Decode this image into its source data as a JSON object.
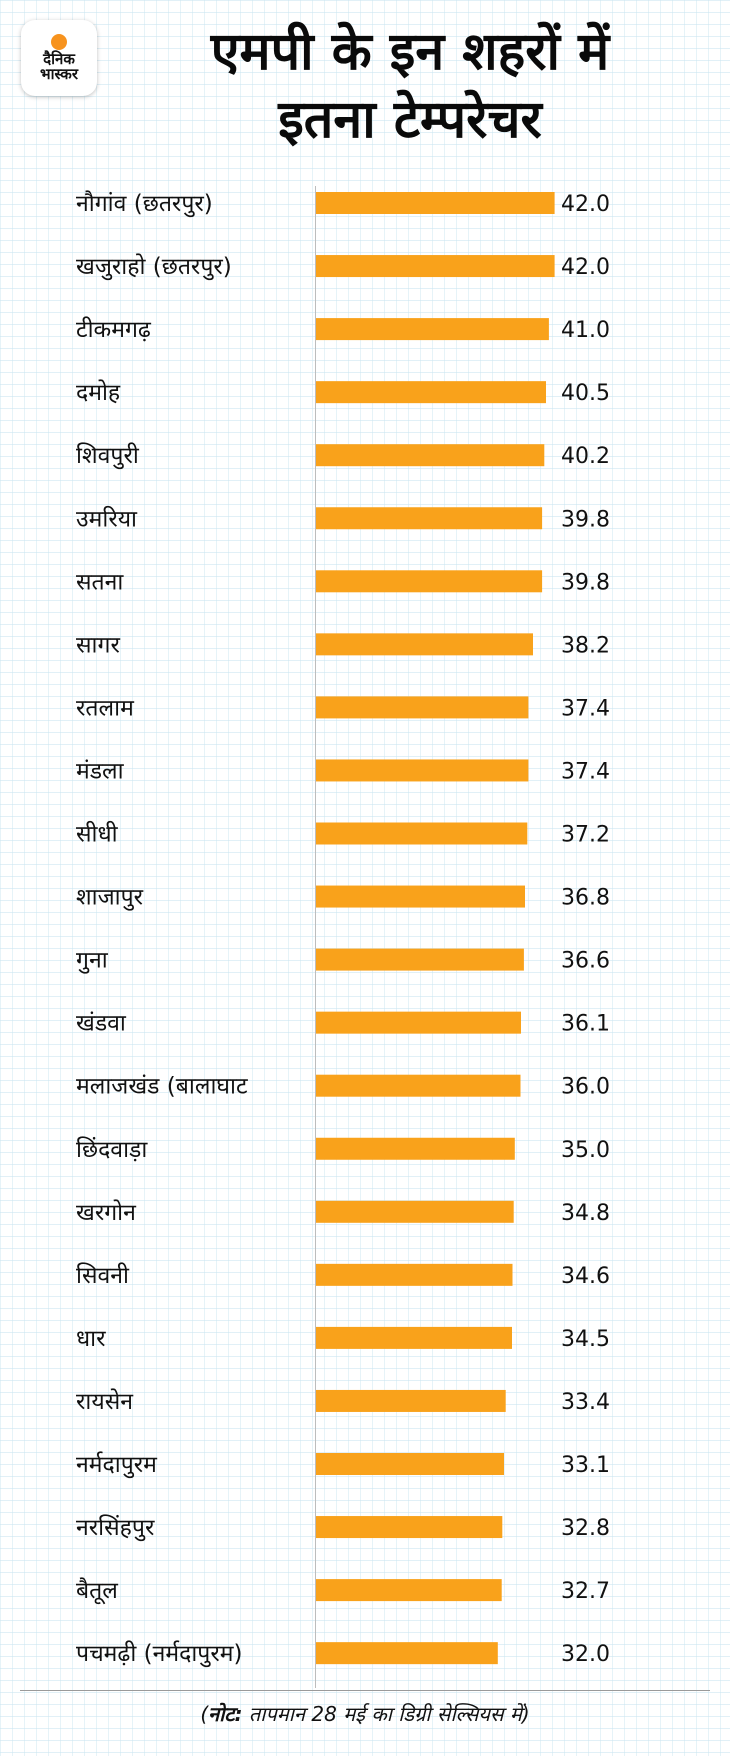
{
  "brand": {
    "name_line1": "दैनिक",
    "name_line2": "भास्कर",
    "accent": "#f7931e"
  },
  "header": {
    "title_line1": "एमपी के इन शहरों में",
    "title_line2": "इतना टेम्परेचर"
  },
  "footer": {
    "note_prefix": "(",
    "note_label": "नोट:",
    "note_text": " तापमान 28 मई का डिग्री सेल्सियस में)"
  },
  "chart_data": {
    "type": "bar",
    "orientation": "horizontal",
    "title": "एमपी के इन शहरों में इतना टेम्परेचर",
    "xlabel": "",
    "ylabel": "",
    "unit": "डिग्री सेल्सियस",
    "bar_color": "#f9a21b",
    "grid": false,
    "legend": "none",
    "categories": [
      "नौगांव (छतरपुर)",
      "खजुराहो (छतरपुर)",
      "टीकमगढ़",
      "दमोह",
      "शिवपुरी",
      "उमरिया",
      "सतना",
      "सागर",
      "रतलाम",
      "मंडला",
      "सीधी",
      "शाजापुर",
      "गुना",
      "खंडवा",
      "मलाजखंड (बालाघाट",
      "छिंदवाड़ा",
      "खरगोन",
      "सिवनी",
      "धार",
      "रायसेन",
      "नर्मदापुरम",
      "नरसिंहपुर",
      "बैतूल",
      "पचमढ़ी (नर्मदापुरम)"
    ],
    "values": [
      42.0,
      42.0,
      41.0,
      40.5,
      40.2,
      39.8,
      39.8,
      38.2,
      37.4,
      37.4,
      37.2,
      36.8,
      36.6,
      36.1,
      36.0,
      35.0,
      34.8,
      34.6,
      34.5,
      33.4,
      33.1,
      32.8,
      32.7,
      32.0
    ],
    "value_labels": [
      "42.0",
      "42.0",
      "41.0",
      "40.5",
      "40.2",
      "39.8",
      "39.8",
      "38.2",
      "37.4",
      "37.4",
      "37.2",
      "36.8",
      "36.6",
      "36.1",
      "36.0",
      "35.0",
      "34.8",
      "34.6",
      "34.5",
      "33.4",
      "33.1",
      "32.8",
      "32.7",
      "32.0"
    ],
    "xlim": [
      0,
      42
    ]
  }
}
